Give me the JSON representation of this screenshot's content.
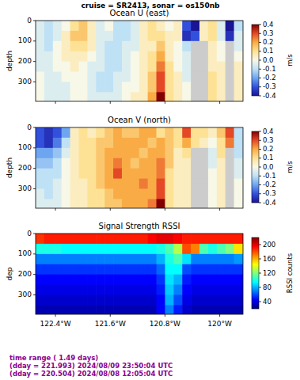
{
  "title": "cruise = SR2413,  sonar = os150nb",
  "chart_data": [
    {
      "type": "heatmap",
      "title": "Ocean U (east)",
      "y_label": "depth",
      "x": [
        -122.627,
        -122.501,
        -122.375,
        -122.249,
        -122.123,
        -121.997,
        -121.871,
        -121.745,
        -121.619,
        -121.493,
        -121.367,
        -121.241,
        -121.115,
        -120.989,
        -120.863,
        -120.737,
        -120.611,
        -120.485,
        -120.359,
        -120.233,
        -120.107,
        -119.981,
        -119.855,
        -119.729
      ],
      "y": [
        25,
        75,
        125,
        175,
        225,
        275,
        325,
        375
      ],
      "xlim": [
        -122.69,
        -119.66
      ],
      "ylim": [
        0,
        395
      ],
      "xticks": [
        -122.4,
        -121.6,
        -120.8,
        -120
      ],
      "yticks": [
        0,
        100,
        200,
        300
      ],
      "tick_labels": "y",
      "cells": [
        [
          -0.05,
          -0.1,
          -0.05,
          0.0,
          0.1,
          0.15,
          0.05,
          -0.05,
          0.0,
          -0.1,
          -0.1,
          -0.05,
          0.05,
          0.1,
          0.05,
          0.0,
          0.05,
          -0.3,
          -0.4,
          0.05,
          0.1,
          -0.05,
          -0.4,
          -0.1
        ],
        [
          -0.05,
          -0.1,
          -0.05,
          0.05,
          0.15,
          0.15,
          0.05,
          -0.05,
          -0.05,
          -0.1,
          -0.1,
          -0.05,
          0.05,
          0.1,
          0.1,
          0.05,
          0.05,
          -0.35,
          -0.3,
          0.05,
          0.1,
          -0.05,
          -0.35,
          -0.05
        ],
        [
          -0.05,
          -0.1,
          0.0,
          0.05,
          0.1,
          0.1,
          0.05,
          -0.05,
          -0.1,
          -0.1,
          -0.05,
          -0.05,
          0.05,
          0.05,
          0.15,
          0.05,
          0.0,
          -0.1,
          null,
          null,
          0.05,
          0.0,
          null,
          -0.05
        ],
        [
          -0.05,
          -0.05,
          0.0,
          0.05,
          0.05,
          0.05,
          0.0,
          -0.05,
          -0.1,
          -0.1,
          -0.05,
          0.0,
          0.05,
          0.1,
          0.2,
          0.05,
          0.0,
          -0.05,
          null,
          null,
          0.05,
          0.0,
          null,
          0.0
        ],
        [
          -0.05,
          -0.05,
          0.0,
          0.0,
          0.05,
          0.0,
          -0.05,
          -0.05,
          -0.1,
          -0.1,
          -0.05,
          0.0,
          0.05,
          0.1,
          0.25,
          0.1,
          0.0,
          -0.05,
          null,
          null,
          0.05,
          0.05,
          null,
          0.05
        ],
        [
          0.0,
          -0.05,
          -0.05,
          0.0,
          0.0,
          0.0,
          -0.05,
          -0.1,
          -0.1,
          -0.05,
          -0.05,
          0.0,
          0.05,
          0.15,
          0.3,
          0.1,
          0.05,
          -0.05,
          null,
          null,
          0.1,
          0.05,
          null,
          0.05
        ],
        [
          0.0,
          -0.05,
          -0.05,
          -0.05,
          0.0,
          0.0,
          -0.05,
          -0.1,
          -0.1,
          -0.05,
          0.0,
          0.0,
          0.05,
          0.15,
          0.3,
          0.1,
          0.05,
          0.0,
          null,
          null,
          0.1,
          0.05,
          null,
          0.05
        ],
        [
          0.0,
          -0.05,
          -0.05,
          -0.05,
          0.0,
          0.0,
          -0.05,
          -0.05,
          -0.05,
          -0.05,
          0.0,
          0.05,
          0.05,
          0.2,
          0.4,
          0.1,
          0.05,
          0.0,
          null,
          null,
          0.1,
          0.05,
          null,
          0.05
        ]
      ],
      "colorbar": {
        "label": "m/s",
        "lim": [
          -0.4,
          0.4
        ],
        "ticks": [
          -0.4,
          -0.3,
          -0.2,
          -0.1,
          {
            "value": 0,
            "label": "0.0"
          },
          0.1,
          0.2,
          0.3,
          0.4
        ]
      }
    },
    {
      "type": "heatmap",
      "title": "Ocean V (north)",
      "y_label": "depth",
      "x": [
        -122.627,
        -122.501,
        -122.375,
        -122.249,
        -122.123,
        -121.997,
        -121.871,
        -121.745,
        -121.619,
        -121.493,
        -121.367,
        -121.241,
        -121.115,
        -120.989,
        -120.863,
        -120.737,
        -120.611,
        -120.485,
        -120.359,
        -120.233,
        -120.107,
        -119.981,
        -119.855,
        -119.729
      ],
      "y": [
        25,
        75,
        125,
        175,
        225,
        275,
        325,
        375
      ],
      "xlim": [
        -122.69,
        -119.66
      ],
      "ylim": [
        0,
        395
      ],
      "xticks": [
        -122.4,
        -121.6,
        -120.8,
        -120
      ],
      "yticks": [
        0,
        100,
        200,
        300
      ],
      "tick_labels": "y",
      "cells": [
        [
          -0.3,
          -0.35,
          -0.3,
          -0.2,
          0.05,
          0.1,
          0.05,
          0.1,
          0.15,
          0.2,
          0.15,
          0.15,
          0.2,
          0.2,
          0.1,
          0.15,
          0.1,
          0.3,
          0.1,
          0.1,
          0.05,
          0.15,
          0.3,
          -0.1
        ],
        [
          -0.3,
          -0.35,
          -0.25,
          -0.1,
          0.05,
          0.1,
          0.1,
          0.15,
          0.15,
          0.2,
          0.2,
          0.2,
          0.2,
          0.15,
          0.2,
          0.15,
          0.1,
          0.2,
          0.1,
          0.05,
          0.0,
          0.1,
          0.25,
          -0.1
        ],
        [
          -0.2,
          -0.2,
          -0.15,
          -0.05,
          0.05,
          0.1,
          0.1,
          0.15,
          0.2,
          0.2,
          0.2,
          0.2,
          0.15,
          0.2,
          0.2,
          0.15,
          0.05,
          0.1,
          null,
          null,
          -0.05,
          0.1,
          null,
          -0.1
        ],
        [
          -0.15,
          -0.15,
          -0.1,
          0.0,
          0.05,
          0.1,
          0.1,
          0.15,
          0.2,
          0.25,
          0.2,
          0.15,
          0.2,
          0.2,
          0.25,
          0.15,
          0.05,
          0.05,
          null,
          null,
          -0.05,
          0.05,
          null,
          -0.05
        ],
        [
          -0.1,
          -0.1,
          -0.1,
          0.0,
          0.05,
          0.1,
          0.1,
          0.15,
          0.2,
          0.3,
          0.2,
          0.2,
          0.2,
          0.2,
          0.25,
          0.1,
          0.05,
          0.05,
          null,
          null,
          0.0,
          0.05,
          null,
          -0.05
        ],
        [
          -0.1,
          -0.1,
          -0.05,
          0.0,
          0.05,
          0.05,
          0.1,
          0.15,
          0.2,
          0.2,
          0.2,
          0.2,
          0.25,
          0.2,
          0.3,
          0.1,
          0.05,
          0.05,
          null,
          null,
          0.0,
          0.05,
          null,
          0.0
        ],
        [
          -0.05,
          -0.1,
          -0.05,
          0.0,
          0.05,
          0.05,
          0.1,
          0.1,
          0.15,
          0.2,
          0.2,
          0.2,
          0.2,
          0.2,
          0.3,
          0.1,
          0.05,
          0.05,
          null,
          null,
          0.0,
          0.05,
          null,
          0.0
        ],
        [
          -0.05,
          -0.05,
          -0.05,
          0.0,
          0.05,
          0.05,
          0.1,
          0.1,
          0.15,
          0.15,
          0.2,
          0.2,
          0.2,
          0.25,
          0.4,
          0.1,
          0.05,
          0.05,
          null,
          null,
          0.0,
          0.05,
          null,
          0.0
        ]
      ],
      "colorbar": {
        "label": "m/s",
        "lim": [
          -0.4,
          0.4
        ],
        "ticks": [
          -0.4,
          -0.3,
          -0.2,
          -0.1,
          {
            "value": 0,
            "label": "0.0"
          },
          0.1,
          0.2,
          0.3,
          0.4
        ]
      }
    },
    {
      "type": "heatmap",
      "title": "Signal Strength RSSI",
      "y_label": "dep",
      "x": [
        -122.627,
        -122.501,
        -122.375,
        -122.249,
        -122.123,
        -121.997,
        -121.871,
        -121.745,
        -121.619,
        -121.493,
        -121.367,
        -121.241,
        -121.115,
        -120.989,
        -120.863,
        -120.737,
        -120.611,
        -120.485,
        -120.359,
        -120.233,
        -120.107,
        -119.981,
        -119.855,
        -119.729
      ],
      "y": [
        25,
        75,
        125,
        175,
        225,
        275,
        325,
        375
      ],
      "xlim": [
        -122.69,
        -119.66
      ],
      "ylim": [
        0,
        395
      ],
      "xticks": [
        {
          "value": -122.4,
          "label": "122.4°W"
        },
        {
          "value": -121.6,
          "label": "121.6°W"
        },
        {
          "value": -120.8,
          "label": "120.8°W"
        },
        {
          "value": -120,
          "label": "120°W"
        }
      ],
      "yticks": [
        0,
        100,
        200,
        300
      ],
      "cells": [
        [
          185,
          190,
          190,
          190,
          190,
          190,
          190,
          190,
          190,
          190,
          190,
          190,
          190,
          195,
          200,
          200,
          195,
          190,
          190,
          190,
          190,
          190,
          190,
          190
        ],
        [
          100,
          100,
          100,
          95,
          95,
          95,
          95,
          95,
          95,
          95,
          95,
          95,
          95,
          95,
          100,
          110,
          130,
          180,
          170,
          110,
          100,
          110,
          120,
          150
        ],
        [
          70,
          70,
          70,
          70,
          70,
          70,
          70,
          70,
          70,
          70,
          70,
          70,
          70,
          70,
          80,
          100,
          110,
          90,
          70,
          70,
          70,
          70,
          70,
          75
        ],
        [
          55,
          55,
          55,
          55,
          55,
          55,
          55,
          55,
          55,
          55,
          55,
          55,
          55,
          55,
          65,
          95,
          95,
          60,
          55,
          55,
          55,
          55,
          55,
          55
        ],
        [
          45,
          45,
          45,
          45,
          45,
          45,
          45,
          45,
          45,
          45,
          45,
          45,
          45,
          45,
          55,
          90,
          80,
          50,
          45,
          45,
          45,
          45,
          45,
          45
        ],
        [
          40,
          40,
          40,
          40,
          40,
          40,
          40,
          40,
          40,
          40,
          40,
          40,
          40,
          40,
          50,
          85,
          70,
          45,
          40,
          40,
          40,
          40,
          40,
          40
        ],
        [
          35,
          35,
          35,
          35,
          35,
          35,
          35,
          35,
          35,
          35,
          35,
          35,
          35,
          35,
          45,
          80,
          60,
          40,
          35,
          35,
          35,
          35,
          35,
          35
        ],
        [
          30,
          30,
          30,
          30,
          30,
          30,
          30,
          30,
          30,
          30,
          30,
          30,
          30,
          30,
          45,
          70,
          50,
          35,
          30,
          30,
          30,
          30,
          30,
          30
        ]
      ],
      "colorbar": {
        "label": "RSSI counts",
        "lim": [
          20,
          220
        ],
        "ticks": [
          40,
          80,
          120,
          160,
          200
        ]
      }
    }
  ],
  "footer": [
    "time range ( 1.49 days)",
    "(dday = 221.993) 2024/08/09 23:50:04 UTC",
    "(dday = 220.504) 2024/08/08 12:05:04 UTC"
  ]
}
